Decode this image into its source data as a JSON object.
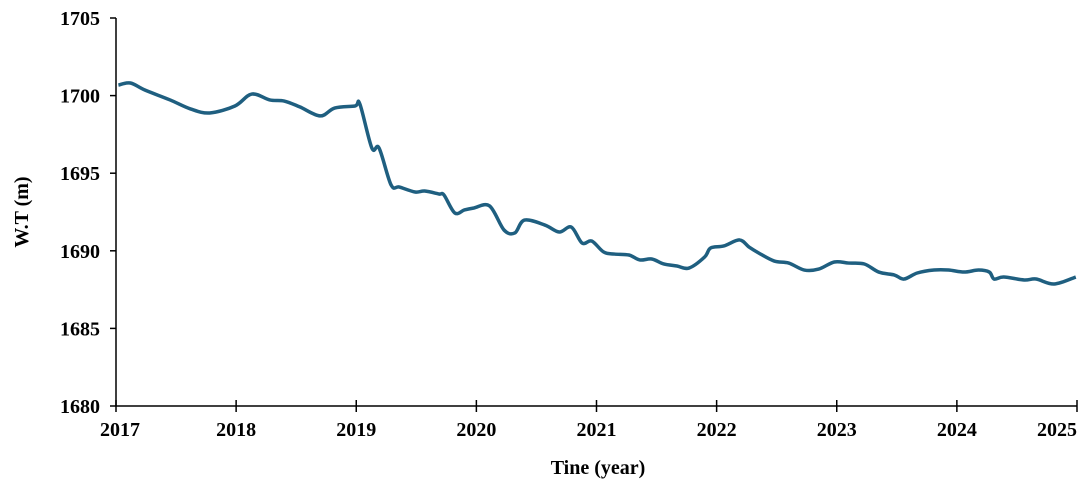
{
  "chart_data": {
    "type": "line",
    "xlabel": "Tine (year)",
    "ylabel": "W.T (m)",
    "xlim": [
      2017,
      2025
    ],
    "xticks": [
      2017,
      2018,
      2019,
      2020,
      2021,
      2022,
      2023,
      2024,
      2025
    ],
    "ylim": [
      1680,
      1705
    ],
    "yticks": [
      1680,
      1685,
      1690,
      1695,
      1700,
      1705
    ],
    "grid": false,
    "series": [
      {
        "color": "#1f5f80",
        "x": [
          2017.02,
          2017.12,
          2017.24,
          2017.45,
          2017.62,
          2017.78,
          2017.99,
          2018.13,
          2018.28,
          2018.4,
          2018.53,
          2018.7,
          2018.82,
          2018.99,
          2019.03,
          2019.13,
          2019.19,
          2019.29,
          2019.36,
          2019.49,
          2019.57,
          2019.69,
          2019.73,
          2019.82,
          2019.9,
          2019.98,
          2020.11,
          2020.23,
          2020.32,
          2020.4,
          2020.57,
          2020.69,
          2020.79,
          2020.88,
          2020.96,
          2021.06,
          2021.15,
          2021.27,
          2021.36,
          2021.46,
          2021.56,
          2021.67,
          2021.77,
          2021.9,
          2021.95,
          2022.06,
          2022.19,
          2022.27,
          2022.35,
          2022.48,
          2022.6,
          2022.73,
          2022.85,
          2022.98,
          2023.1,
          2023.23,
          2023.35,
          2023.48,
          2023.56,
          2023.67,
          2023.81,
          2023.93,
          2024.06,
          2024.18,
          2024.27,
          2024.31,
          2024.39,
          2024.56,
          2024.66,
          2024.81,
          2024.99
        ],
        "values": [
          1700.68,
          1700.81,
          1700.36,
          1699.72,
          1699.14,
          1698.88,
          1699.33,
          1700.1,
          1699.72,
          1699.65,
          1699.27,
          1698.69,
          1699.2,
          1699.33,
          1699.46,
          1696.62,
          1696.62,
          1694.24,
          1694.11,
          1693.79,
          1693.85,
          1693.66,
          1693.6,
          1692.44,
          1692.63,
          1692.76,
          1692.89,
          1691.34,
          1691.15,
          1691.98,
          1691.66,
          1691.21,
          1691.53,
          1690.5,
          1690.63,
          1689.92,
          1689.79,
          1689.73,
          1689.41,
          1689.47,
          1689.15,
          1689.02,
          1688.89,
          1689.6,
          1690.18,
          1690.31,
          1690.7,
          1690.24,
          1689.86,
          1689.34,
          1689.21,
          1688.76,
          1688.82,
          1689.28,
          1689.21,
          1689.15,
          1688.63,
          1688.44,
          1688.18,
          1688.57,
          1688.76,
          1688.76,
          1688.63,
          1688.76,
          1688.63,
          1688.18,
          1688.31,
          1688.12,
          1688.18,
          1687.86,
          1688.31
        ]
      }
    ]
  }
}
